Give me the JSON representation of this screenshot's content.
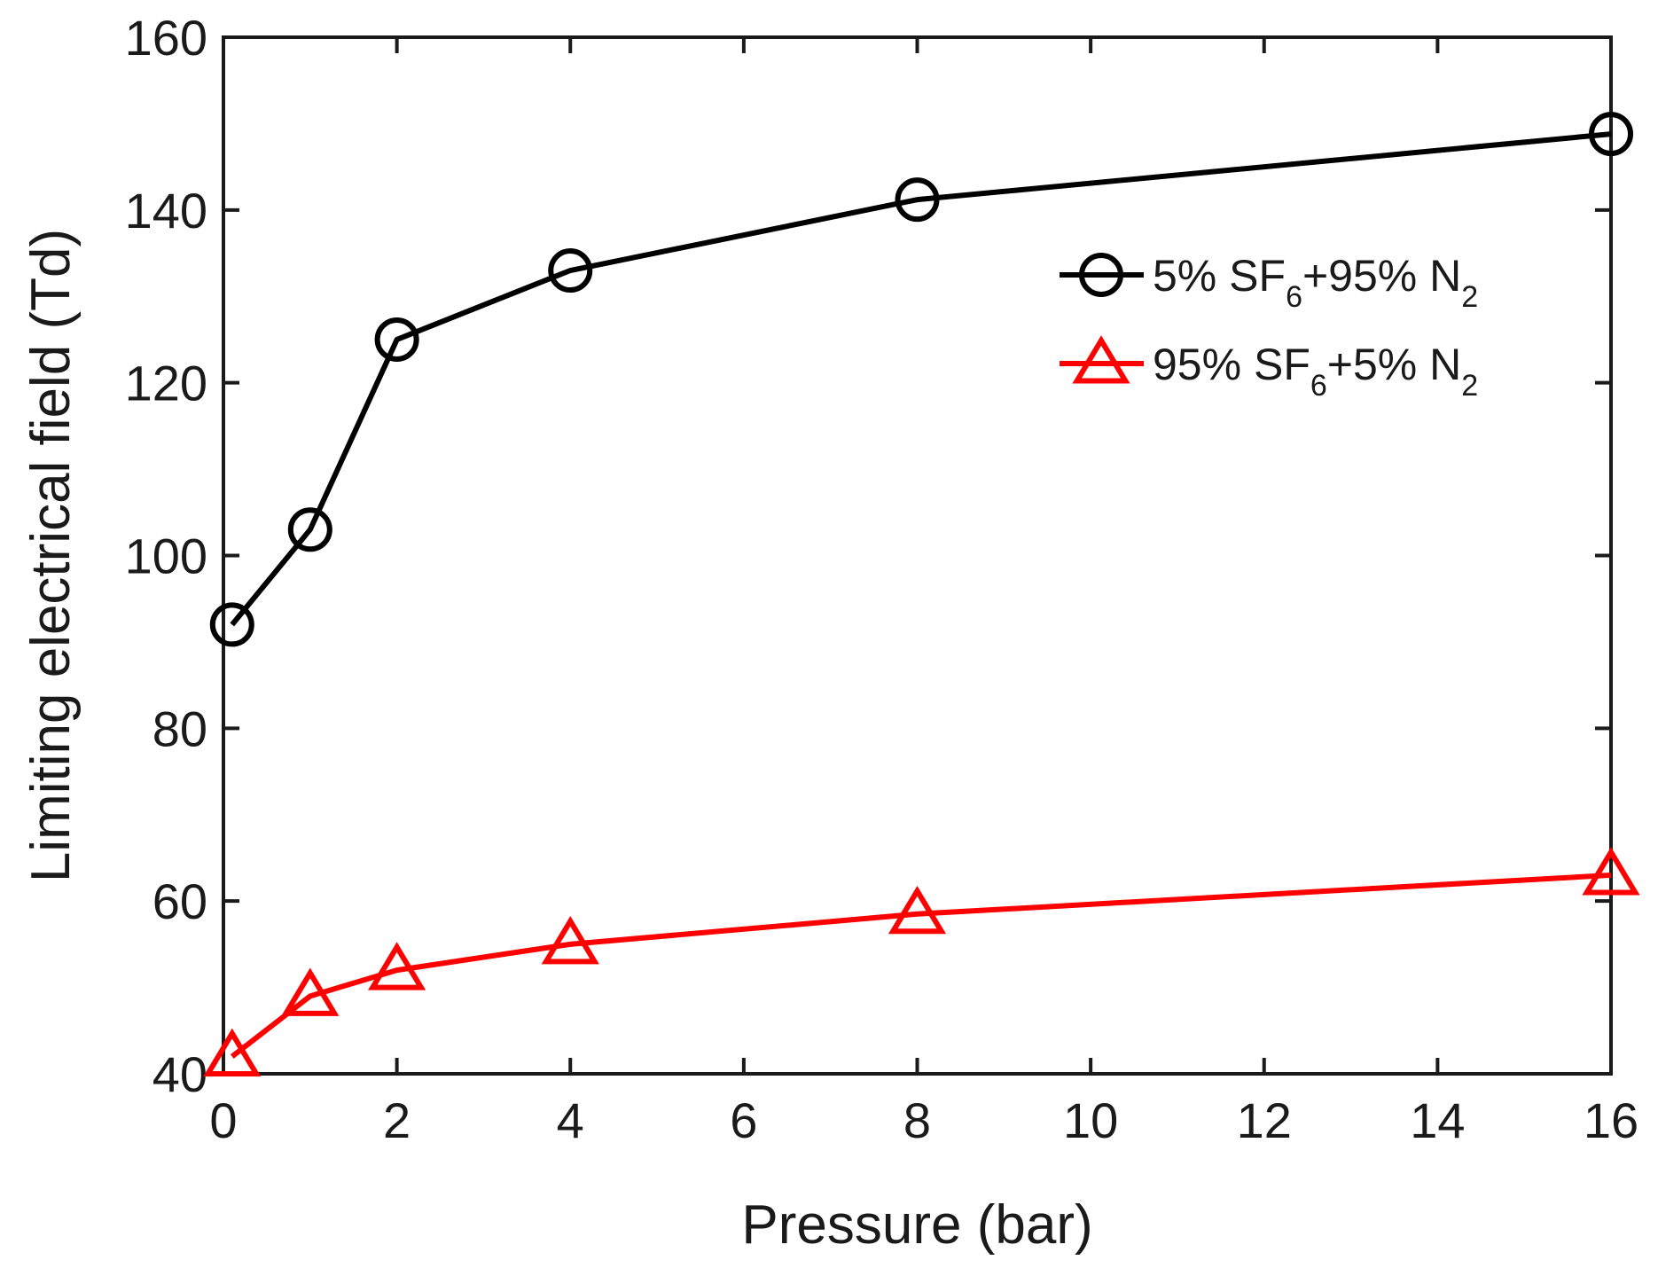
{
  "chart_data": {
    "type": "line",
    "title": "",
    "xlabel": "Pressure (bar)",
    "ylabel": "Limiting electrical field (Td)",
    "xlim": [
      0,
      16
    ],
    "ylim": [
      40,
      160
    ],
    "xticks": [
      0,
      2,
      4,
      6,
      8,
      10,
      12,
      14,
      16
    ],
    "yticks": [
      40,
      60,
      80,
      100,
      120,
      140,
      160
    ],
    "grid": false,
    "legend_position": "top-right",
    "series": [
      {
        "name": "5% SF6+95% N2",
        "legend": {
          "prefix": "5% SF",
          "sub1": "6",
          "mid": "+95% N",
          "sub2": "2"
        },
        "color": "#000000",
        "marker": "circle",
        "x": [
          0.1,
          1,
          2,
          4,
          8,
          16
        ],
        "y": [
          92,
          103,
          125,
          133,
          141.2,
          148.8
        ]
      },
      {
        "name": "95% SF6+5% N2",
        "legend": {
          "prefix": "95% SF",
          "sub1": "6",
          "mid": "+5% N",
          "sub2": "2"
        },
        "color": "#ff0000",
        "marker": "triangle",
        "x": [
          0.1,
          1,
          2,
          4,
          8,
          16
        ],
        "y": [
          42,
          49,
          52,
          55,
          58.5,
          63
        ]
      }
    ]
  }
}
